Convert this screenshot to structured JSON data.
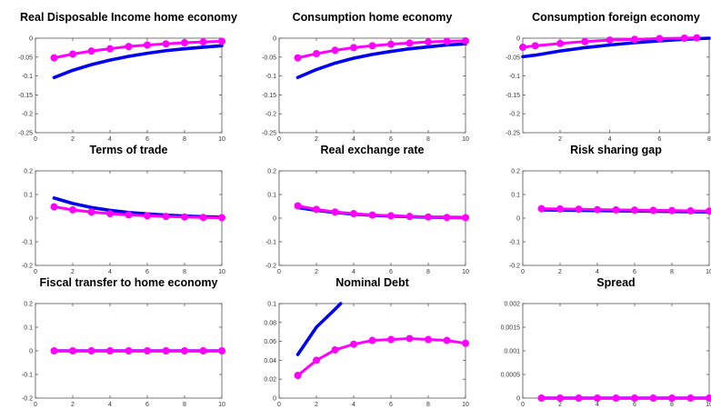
{
  "chart_data": [
    {
      "type": "line",
      "title": "Real Disposable Income home economy",
      "xlim": [
        0,
        10
      ],
      "ylim": [
        -0.25,
        0
      ],
      "xticks": [
        0,
        2,
        4,
        6,
        8,
        10
      ],
      "yticks": [
        -0.25,
        -0.2,
        -0.15,
        -0.1,
        -0.05,
        0
      ],
      "ytick_labels": [
        "-0.25",
        "-0.2",
        "-0.15",
        "-0.1",
        "-0.05",
        "0"
      ],
      "series": [
        {
          "color": "#0000ee",
          "marker": false,
          "x": [
            1,
            2,
            3,
            4,
            5,
            6,
            7,
            8,
            9,
            10
          ],
          "values": [
            -0.104,
            -0.085,
            -0.07,
            -0.058,
            -0.048,
            -0.04,
            -0.033,
            -0.028,
            -0.024,
            -0.02
          ]
        },
        {
          "color": "#ff00ff",
          "marker": true,
          "x": [
            1,
            2,
            3,
            4,
            5,
            6,
            7,
            8,
            9,
            10
          ],
          "values": [
            -0.052,
            -0.042,
            -0.034,
            -0.028,
            -0.022,
            -0.018,
            -0.015,
            -0.012,
            -0.01,
            -0.008
          ]
        }
      ]
    },
    {
      "type": "line",
      "title": "Consumption home economy",
      "xlim": [
        0,
        10
      ],
      "ylim": [
        -0.25,
        0
      ],
      "xticks": [
        0,
        2,
        4,
        6,
        8,
        10
      ],
      "yticks": [
        -0.25,
        -0.2,
        -0.15,
        -0.1,
        -0.05,
        0
      ],
      "ytick_labels": [
        "-0.25",
        "-0.2",
        "-0.15",
        "-0.1",
        "-0.05",
        "0"
      ],
      "series": [
        {
          "color": "#0000ee",
          "marker": false,
          "x": [
            1,
            2,
            3,
            4,
            5,
            6,
            7,
            8,
            9,
            10
          ],
          "values": [
            -0.104,
            -0.083,
            -0.066,
            -0.053,
            -0.043,
            -0.035,
            -0.028,
            -0.023,
            -0.018,
            -0.015
          ]
        },
        {
          "color": "#ff00ff",
          "marker": true,
          "x": [
            1,
            2,
            3,
            4,
            5,
            6,
            7,
            8,
            9,
            10
          ],
          "values": [
            -0.052,
            -0.041,
            -0.032,
            -0.025,
            -0.02,
            -0.016,
            -0.013,
            -0.01,
            -0.008,
            -0.007
          ]
        }
      ]
    },
    {
      "type": "line",
      "title": "Consumption foreign economy",
      "xlim": [
        0.5,
        8
      ],
      "ylim": [
        -0.25,
        0
      ],
      "xticks": [
        2,
        4,
        6,
        8
      ],
      "yticks": [
        -0.25,
        -0.2,
        -0.15,
        -0.1,
        -0.05,
        0
      ],
      "ytick_labels": [
        "-0.25",
        "-0.2",
        "-0.15",
        "-0.1",
        "-0.05",
        "0"
      ],
      "series": [
        {
          "color": "#0000ee",
          "marker": false,
          "x": [
            0.5,
            1,
            2,
            3,
            4,
            5,
            6,
            7,
            8
          ],
          "values": [
            -0.049,
            -0.045,
            -0.034,
            -0.025,
            -0.018,
            -0.012,
            -0.007,
            -0.003,
            0.0
          ]
        },
        {
          "color": "#ff00ff",
          "marker": true,
          "x": [
            0.5,
            1,
            2,
            3,
            4,
            5,
            6,
            7,
            7.5
          ],
          "values": [
            -0.024,
            -0.02,
            -0.014,
            -0.009,
            -0.005,
            -0.003,
            -0.001,
            0.0,
            0.001
          ]
        }
      ]
    },
    {
      "type": "line",
      "title": "Terms of trade",
      "xlim": [
        0,
        10
      ],
      "ylim": [
        -0.2,
        0.2
      ],
      "xticks": [
        0,
        2,
        4,
        6,
        8,
        10
      ],
      "yticks": [
        -0.2,
        -0.1,
        0,
        0.1,
        0.2
      ],
      "ytick_labels": [
        "-0.2",
        "-0.1",
        "0",
        "0.1",
        "0.2"
      ],
      "series": [
        {
          "color": "#0000ee",
          "marker": false,
          "x": [
            1,
            2,
            3,
            4,
            5,
            6,
            7,
            8,
            9,
            10
          ],
          "values": [
            0.085,
            0.062,
            0.045,
            0.033,
            0.024,
            0.018,
            0.013,
            0.009,
            0.006,
            0.004
          ]
        },
        {
          "color": "#ff00ff",
          "marker": true,
          "x": [
            1,
            2,
            3,
            4,
            5,
            6,
            7,
            8,
            9,
            10
          ],
          "values": [
            0.048,
            0.035,
            0.026,
            0.019,
            0.014,
            0.01,
            0.007,
            0.005,
            0.003,
            0.002
          ]
        }
      ]
    },
    {
      "type": "line",
      "title": "Real exchange rate",
      "xlim": [
        0,
        10
      ],
      "ylim": [
        -0.2,
        0.2
      ],
      "xticks": [
        0,
        2,
        4,
        6,
        8,
        10
      ],
      "yticks": [
        -0.2,
        -0.1,
        0,
        0.1,
        0.2
      ],
      "ytick_labels": [
        "-0.2",
        "-0.1",
        "0",
        "0.1",
        "0.2"
      ],
      "series": [
        {
          "color": "#0000ee",
          "marker": false,
          "x": [
            1,
            2,
            3,
            4,
            5,
            6,
            7,
            8,
            9,
            10
          ],
          "values": [
            0.045,
            0.033,
            0.024,
            0.017,
            0.012,
            0.009,
            0.006,
            0.004,
            0.003,
            0.002
          ]
        },
        {
          "color": "#ff00ff",
          "marker": true,
          "x": [
            1,
            2,
            3,
            4,
            5,
            6,
            7,
            8,
            9,
            10
          ],
          "values": [
            0.052,
            0.037,
            0.026,
            0.019,
            0.013,
            0.01,
            0.007,
            0.005,
            0.003,
            0.002
          ]
        }
      ]
    },
    {
      "type": "line",
      "title": "Risk sharing gap",
      "xlim": [
        0,
        10
      ],
      "ylim": [
        -0.2,
        0.2
      ],
      "xticks": [
        0,
        2,
        4,
        6,
        8,
        10
      ],
      "yticks": [
        -0.2,
        -0.1,
        0,
        0.1,
        0.2
      ],
      "ytick_labels": [
        "-0.2",
        "-0.1",
        "0",
        "0.1",
        "0.2"
      ],
      "series": [
        {
          "color": "#0000ee",
          "marker": false,
          "x": [
            1,
            2,
            3,
            4,
            5,
            6,
            7,
            8,
            9,
            10
          ],
          "values": [
            0.035,
            0.034,
            0.033,
            0.032,
            0.031,
            0.03,
            0.029,
            0.028,
            0.027,
            0.026
          ]
        },
        {
          "color": "#ff00ff",
          "marker": true,
          "x": [
            1,
            2,
            3,
            4,
            5,
            6,
            7,
            8,
            9,
            10
          ],
          "values": [
            0.04,
            0.039,
            0.038,
            0.036,
            0.035,
            0.034,
            0.033,
            0.032,
            0.031,
            0.03
          ]
        }
      ]
    },
    {
      "type": "line",
      "title": "Fiscal transfer to home economy",
      "xlim": [
        0,
        10
      ],
      "ylim": [
        -0.2,
        0.2
      ],
      "xticks": [
        0,
        2,
        4,
        6,
        8,
        10
      ],
      "yticks": [
        -0.2,
        -0.1,
        0,
        0.1,
        0.2
      ],
      "ytick_labels": [
        "-0.2",
        "-0.1",
        "0",
        "0.1",
        "0.2"
      ],
      "series": [
        {
          "color": "#0000ee",
          "marker": false,
          "x": [
            1,
            2,
            3,
            4,
            5,
            6,
            7,
            8,
            9,
            10
          ],
          "values": [
            0,
            0,
            0,
            0,
            0,
            0,
            0,
            0,
            0,
            0
          ]
        },
        {
          "color": "#ff00ff",
          "marker": true,
          "x": [
            1,
            2,
            3,
            4,
            5,
            6,
            7,
            8,
            9,
            10
          ],
          "values": [
            0,
            0,
            0,
            0,
            0,
            0,
            0,
            0,
            0,
            0
          ]
        }
      ]
    },
    {
      "type": "line",
      "title": "Nominal Debt",
      "xlim": [
        0,
        10
      ],
      "ylim": [
        0,
        0.1
      ],
      "xticks": [
        0,
        2,
        4,
        6,
        8,
        10
      ],
      "yticks": [
        0,
        0.02,
        0.04,
        0.06,
        0.08,
        0.1
      ],
      "ytick_labels": [
        "0",
        "0.02",
        "0.04",
        "0.06",
        "0.08",
        "0.1"
      ],
      "series": [
        {
          "color": "#0000ee",
          "marker": false,
          "x": [
            1,
            2,
            3,
            3.3
          ],
          "values": [
            0.046,
            0.075,
            0.094,
            0.1
          ]
        },
        {
          "color": "#ff00ff",
          "marker": true,
          "x": [
            1,
            2,
            3,
            4,
            5,
            6,
            7,
            8,
            9,
            10
          ],
          "values": [
            0.024,
            0.04,
            0.051,
            0.057,
            0.061,
            0.062,
            0.063,
            0.062,
            0.061,
            0.058
          ]
        }
      ]
    },
    {
      "type": "line",
      "title": "Spread",
      "xlim": [
        0,
        10
      ],
      "ylim": [
        0,
        0.002
      ],
      "xticks": [
        0,
        2,
        4,
        6,
        8,
        10
      ],
      "yticks": [
        0,
        0.0005,
        0.001,
        0.0015,
        0.002
      ],
      "ytick_labels": [
        "0",
        "0.0005",
        "0.001",
        "0.0015",
        "0.002"
      ],
      "series": [
        {
          "color": "#0000ee",
          "marker": false,
          "x": [
            1,
            2,
            3,
            4,
            5,
            6,
            7,
            8,
            9,
            10
          ],
          "values": [
            0,
            0,
            0,
            0,
            0,
            0,
            0,
            0,
            0,
            0
          ]
        },
        {
          "color": "#ff00ff",
          "marker": true,
          "x": [
            1,
            2,
            3,
            4,
            5,
            6,
            7,
            8,
            9,
            10
          ],
          "values": [
            0,
            0,
            0,
            0,
            0,
            0,
            0,
            0,
            0,
            0
          ]
        }
      ]
    }
  ]
}
